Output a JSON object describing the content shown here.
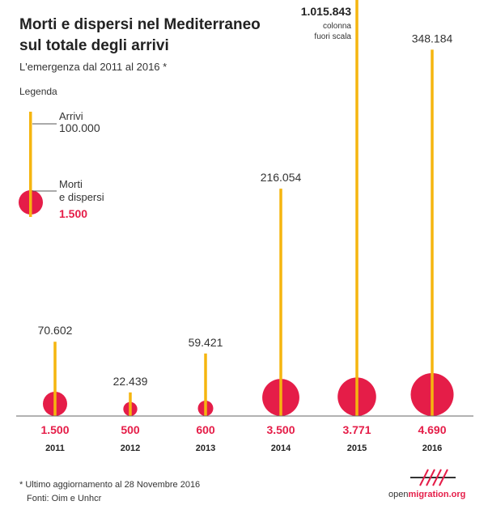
{
  "header": {
    "title": "Morti e dispersi nel Mediterraneo sul totale degli arrivi",
    "subtitle": "L'emergenza dal 2011 al 2016 *"
  },
  "legend": {
    "title": "Legenda",
    "arrivals_label": "Arrivi",
    "arrivals_value": "100.000",
    "deaths_label_1": "Morti",
    "deaths_label_2": "e dispersi",
    "deaths_value": "1.500"
  },
  "footer": {
    "note": "* Ultimo aggiornamento al 28 Novembre 2016",
    "sources": "Fonti: Oim e Unhcr",
    "logo_prefix": "open",
    "logo_suffix": "migration.org"
  },
  "colors": {
    "arrivals": "#f5b50f",
    "deaths": "#e51d48",
    "text": "#222222"
  },
  "chart_data": {
    "type": "bar",
    "categories": [
      "2011",
      "2012",
      "2013",
      "2014",
      "2015",
      "2016"
    ],
    "series": [
      {
        "values": [
          70602,
          22439,
          59421,
          216054,
          1015843,
          348184
        ]
      },
      {
        "values": [
          1500,
          500,
          600,
          3500,
          3771,
          4690
        ]
      }
    ],
    "arrival_labels": [
      "70.602",
      "22.439",
      "59.421",
      "216.054",
      "1.015.843",
      "348.184"
    ],
    "death_labels": [
      "1.500",
      "500",
      "600",
      "3.500",
      "3.771",
      "4.690"
    ],
    "annotations": {
      "out_of_scale_line1": "colonna",
      "out_of_scale_line2": "fuori scala"
    }
  }
}
